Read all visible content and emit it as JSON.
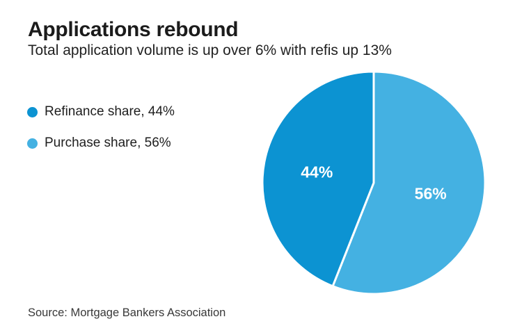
{
  "header": {
    "title": "Applications rebound",
    "subtitle": "Total application volume is up over 6% with refis up 13%"
  },
  "source_note": "Source: Mortgage Bankers Association",
  "chart_data": {
    "type": "pie",
    "title": "Applications rebound",
    "subtitle": "Total application volume is up over 6% with refis up 13%",
    "start_angle_deg": 0,
    "direction": "clockwise",
    "slices": [
      {
        "label": "Purchase share",
        "value": 56,
        "display": "56%",
        "color": "#44b1e2"
      },
      {
        "label": "Refinance share",
        "value": 44,
        "display": "44%",
        "color": "#0c93d2"
      }
    ],
    "legend": [
      {
        "label": "Refinance share, 44%",
        "color": "#0c93d2"
      },
      {
        "label": "Purchase share, 56%",
        "color": "#44b1e2"
      }
    ],
    "slice_divider_color": "#ffffff",
    "label_color": "#ffffff",
    "source": "Source: Mortgage Bankers Association"
  }
}
